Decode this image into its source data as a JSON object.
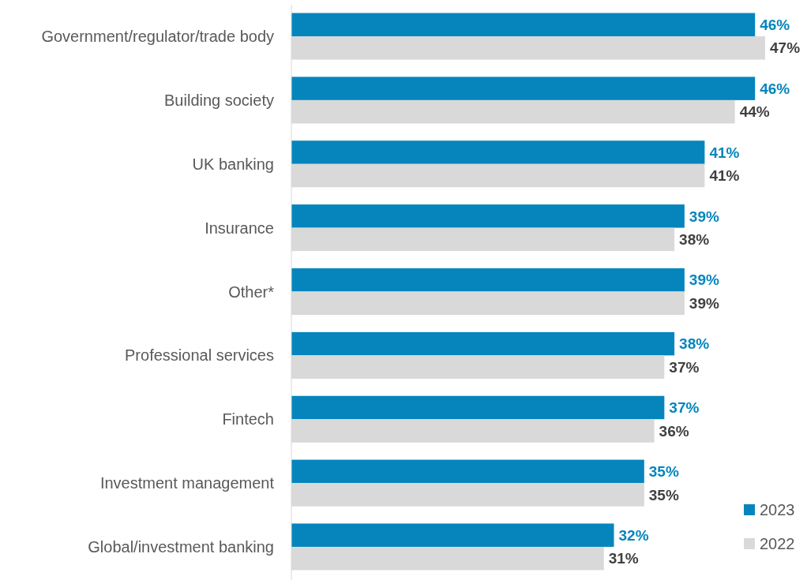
{
  "chart_data": {
    "type": "bar",
    "orientation": "horizontal",
    "categories": [
      "Government/regulator/trade body",
      "Building society",
      "UK banking",
      "Insurance",
      "Other*",
      "Professional services",
      "Fintech",
      "Investment management",
      "Global/investment banking"
    ],
    "series": [
      {
        "name": "2023",
        "color": "#0585bc",
        "values": [
          46,
          46,
          41,
          39,
          39,
          38,
          37,
          35,
          32
        ],
        "value_labels": [
          "46%",
          "46%",
          "41%",
          "39%",
          "39%",
          "38%",
          "37%",
          "35%",
          "32%"
        ]
      },
      {
        "name": "2022",
        "color": "#d9d9d9",
        "values": [
          47,
          44,
          41,
          38,
          39,
          37,
          36,
          35,
          31
        ],
        "value_labels": [
          "47%",
          "44%",
          "41%",
          "38%",
          "39%",
          "37%",
          "36%",
          "35%",
          "31%"
        ]
      }
    ],
    "legend": "bottom right"
  }
}
